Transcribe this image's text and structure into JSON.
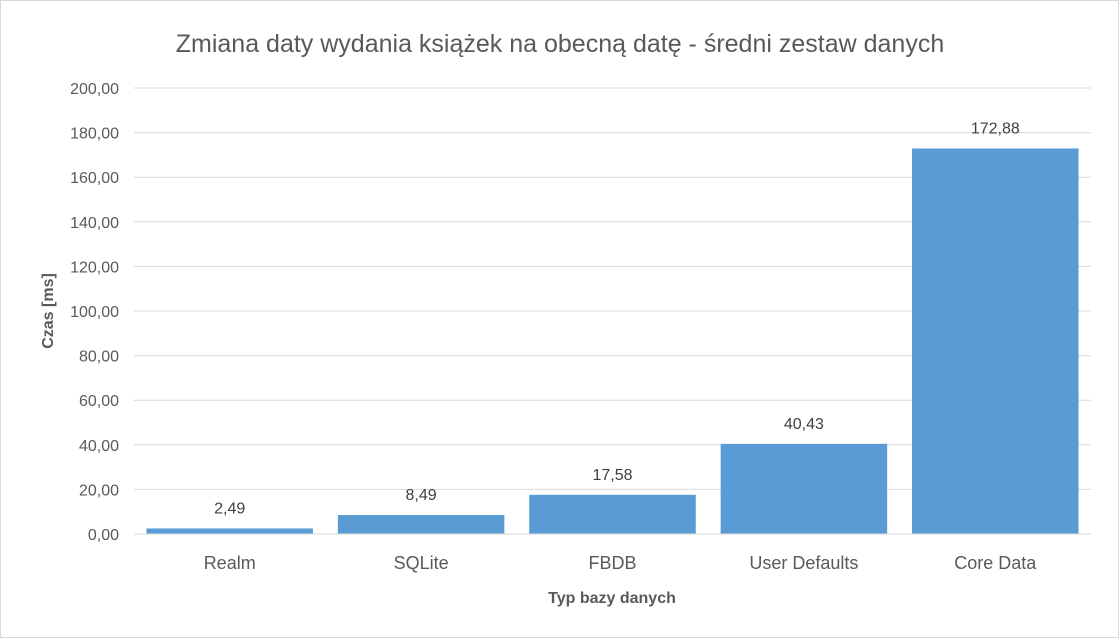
{
  "chart_data": {
    "type": "bar",
    "title": "Zmiana daty wydania książek na obecną datę - średni zestaw danych",
    "xlabel": "Typ bazy danych",
    "ylabel": "Czas [ms]",
    "categories": [
      "Realm",
      "SQLite",
      "FBDB",
      "User Defaults",
      "Core Data"
    ],
    "values": [
      2.49,
      8.49,
      17.58,
      40.43,
      172.88
    ],
    "value_labels": [
      "2,49",
      "8,49",
      "17,58",
      "40,43",
      "172,88"
    ],
    "ylim": [
      0,
      200
    ],
    "yticks": [
      "0,00",
      "20,00",
      "40,00",
      "60,00",
      "80,00",
      "100,00",
      "120,00",
      "140,00",
      "160,00",
      "180,00",
      "200,00"
    ],
    "grid": true,
    "legend": "none",
    "bar_color": "#5b9bd5"
  }
}
